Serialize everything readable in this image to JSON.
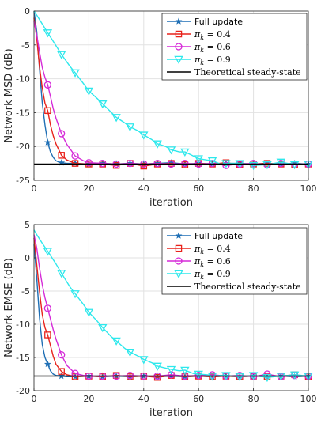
{
  "chart_data": [
    {
      "type": "line",
      "xlabel": "iteration",
      "ylabel": "Network MSD (dB)",
      "xlim": [
        0,
        100
      ],
      "ylim": [
        -25,
        0
      ],
      "xticks": [
        "0",
        "20",
        "40",
        "60",
        "80",
        "100"
      ],
      "yticks": [
        "0",
        "-5",
        "-10",
        "-15",
        "-20",
        "-25"
      ],
      "grid": true,
      "legend_position": "top-right",
      "series": [
        {
          "name": "Full update",
          "color": "#1f6fb5",
          "marker": "star",
          "x": [
            0,
            1,
            2,
            3,
            4,
            5,
            6,
            7,
            8,
            9,
            10,
            12,
            15,
            20,
            25,
            30,
            35,
            40,
            45,
            50,
            55,
            60,
            65,
            70,
            75,
            80,
            85,
            90,
            95,
            100
          ],
          "values": [
            0,
            -3,
            -8.5,
            -13.5,
            -16.8,
            -19.4,
            -20.8,
            -21.6,
            -22.1,
            -22.3,
            -22.4,
            -22.5,
            -22.5,
            -22.6,
            -22.5,
            -22.6,
            -22.5,
            -22.6,
            -22.5,
            -22.4,
            -22.6,
            -22.5,
            -22.6,
            -22.5,
            -22.5,
            -22.6,
            -22.5,
            -22.6,
            -22.5,
            -22.6
          ]
        },
        {
          "name": "π_k = 0.4",
          "color": "#e8221b",
          "marker": "square",
          "x": [
            0,
            1,
            2,
            3,
            4,
            5,
            6,
            7,
            8,
            10,
            12,
            15,
            20,
            25,
            30,
            35,
            40,
            45,
            50,
            55,
            60,
            65,
            70,
            75,
            80,
            85,
            90,
            95,
            100
          ],
          "values": [
            -1,
            -4,
            -8.2,
            -11.3,
            -13.6,
            -14.7,
            -16.8,
            -18.4,
            -19.6,
            -21.3,
            -22.0,
            -22.5,
            -22.6,
            -22.6,
            -22.8,
            -22.5,
            -22.9,
            -22.6,
            -22.5,
            -22.7,
            -22.5,
            -22.6,
            -22.4,
            -22.7,
            -22.6,
            -22.5,
            -22.6,
            -22.7,
            -22.6
          ]
        },
        {
          "name": "π_k = 0.6",
          "color": "#d52ad8",
          "marker": "circle",
          "x": [
            0,
            1,
            2,
            3,
            4,
            5,
            6,
            7,
            8,
            10,
            12,
            15,
            18,
            20,
            25,
            30,
            35,
            40,
            45,
            50,
            55,
            60,
            65,
            70,
            75,
            80,
            85,
            90,
            95,
            100
          ],
          "values": [
            -1.5,
            -3.5,
            -6,
            -8.3,
            -9.8,
            -10.9,
            -12.6,
            -14.4,
            -15.8,
            -18.1,
            -19.7,
            -21.4,
            -22.1,
            -22.4,
            -22.5,
            -22.6,
            -22.5,
            -22.6,
            -22.5,
            -22.6,
            -22.5,
            -22.6,
            -22.5,
            -22.8,
            -22.6,
            -22.5,
            -22.7,
            -22.5,
            -22.6,
            -22.6
          ]
        },
        {
          "name": "π_k = 0.9",
          "color": "#2ee8ec",
          "marker": "triangle-down",
          "x": [
            0,
            1,
            3,
            5,
            8,
            10,
            13,
            15,
            18,
            20,
            23,
            25,
            28,
            30,
            33,
            35,
            38,
            40,
            43,
            45,
            48,
            50,
            53,
            55,
            58,
            60,
            63,
            65,
            68,
            70,
            75,
            80,
            85,
            90,
            95,
            100
          ],
          "values": [
            0,
            -0.6,
            -1.9,
            -3.2,
            -5.1,
            -6.4,
            -8.1,
            -9.1,
            -10.7,
            -11.8,
            -12.9,
            -13.7,
            -14.9,
            -15.7,
            -16.5,
            -17.1,
            -17.7,
            -18.3,
            -19.0,
            -19.6,
            -20.0,
            -20.5,
            -20.8,
            -20.8,
            -21.4,
            -21.8,
            -22.0,
            -22.1,
            -22.6,
            -22.5,
            -22.5,
            -22.8,
            -22.7,
            -22.3,
            -22.7,
            -22.6
          ]
        },
        {
          "name": "Theoretical steady-state",
          "color": "#000000",
          "marker": "none",
          "x": [
            0,
            100
          ],
          "values": [
            -22.6,
            -22.6
          ]
        }
      ]
    },
    {
      "type": "line",
      "xlabel": "iteration",
      "ylabel": "Network EMSE (dB)",
      "xlim": [
        0,
        100
      ],
      "ylim": [
        -20,
        5
      ],
      "xticks": [
        "0",
        "20",
        "40",
        "60",
        "80",
        "100"
      ],
      "yticks": [
        "5",
        "0",
        "-5",
        "-10",
        "-15",
        "-20"
      ],
      "grid": true,
      "legend_position": "top-right",
      "series": [
        {
          "name": "Full update",
          "color": "#1f6fb5",
          "marker": "star",
          "x": [
            0,
            1,
            2,
            3,
            4,
            5,
            6,
            7,
            8,
            10,
            12,
            15,
            20,
            25,
            30,
            35,
            40,
            45,
            50,
            55,
            60,
            65,
            70,
            75,
            80,
            85,
            90,
            95,
            100
          ],
          "values": [
            2,
            -3,
            -9,
            -13,
            -15,
            -16,
            -17,
            -17.5,
            -17.7,
            -17.8,
            -17.9,
            -17.9,
            -17.8,
            -17.9,
            -17.8,
            -17.9,
            -17.8,
            -17.9,
            -17.8,
            -17.9,
            -17.8,
            -17.9,
            -17.8,
            -17.9,
            -17.8,
            -17.9,
            -17.8,
            -17.9,
            -17.8
          ]
        },
        {
          "name": "π_k = 0.4",
          "color": "#e8221b",
          "marker": "square",
          "x": [
            0,
            1,
            2,
            3,
            4,
            5,
            6,
            7,
            8,
            10,
            12,
            15,
            20,
            25,
            30,
            35,
            40,
            45,
            50,
            55,
            60,
            65,
            70,
            75,
            80,
            85,
            90,
            95,
            100
          ],
          "values": [
            3,
            -1,
            -5,
            -8.5,
            -10.5,
            -11.6,
            -13.2,
            -14.8,
            -16,
            -17.1,
            -17.6,
            -17.9,
            -17.8,
            -17.9,
            -17.7,
            -17.9,
            -17.8,
            -18.0,
            -17.7,
            -17.9,
            -17.8,
            -17.9,
            -17.8,
            -17.9,
            -17.8,
            -17.9,
            -17.8,
            -17.6,
            -17.9
          ]
        },
        {
          "name": "π_k = 0.6",
          "color": "#d52ad8",
          "marker": "circle",
          "x": [
            0,
            1,
            2,
            3,
            4,
            5,
            6,
            7,
            8,
            10,
            12,
            15,
            18,
            20,
            25,
            30,
            35,
            40,
            45,
            50,
            55,
            60,
            65,
            70,
            75,
            80,
            85,
            90,
            95,
            100
          ],
          "values": [
            3.5,
            1.5,
            -1.5,
            -4,
            -6,
            -7.6,
            -9.2,
            -10.8,
            -12.2,
            -14.6,
            -16.2,
            -17.4,
            -17.7,
            -17.8,
            -17.8,
            -17.8,
            -17.7,
            -17.8,
            -17.8,
            -17.6,
            -17.8,
            -17.7,
            -17.6,
            -17.8,
            -17.7,
            -17.9,
            -17.5,
            -17.9,
            -17.7,
            -17.8
          ]
        },
        {
          "name": "π_k = 0.9",
          "color": "#2ee8ec",
          "marker": "triangle-down",
          "x": [
            0,
            1,
            3,
            5,
            8,
            10,
            13,
            15,
            18,
            20,
            23,
            25,
            28,
            30,
            33,
            35,
            38,
            40,
            43,
            45,
            48,
            50,
            53,
            55,
            58,
            60,
            63,
            65,
            68,
            70,
            75,
            80,
            85,
            90,
            95,
            100
          ],
          "values": [
            4.2,
            3.5,
            2.2,
            1.0,
            -0.9,
            -2.3,
            -4.3,
            -5.4,
            -7.0,
            -8.2,
            -9.5,
            -10.5,
            -11.8,
            -12.5,
            -13.6,
            -14.2,
            -14.8,
            -15.3,
            -15.8,
            -16.3,
            -16.6,
            -16.8,
            -17.0,
            -16.9,
            -17.4,
            -17.5,
            -17.6,
            -17.8,
            -17.7,
            -17.7,
            -17.9,
            -17.7,
            -18.0,
            -17.8,
            -17.6,
            -17.8
          ]
        },
        {
          "name": "Theoretical steady-state",
          "color": "#000000",
          "marker": "none",
          "x": [
            0,
            100
          ],
          "values": [
            -17.8,
            -17.8
          ]
        }
      ]
    }
  ]
}
